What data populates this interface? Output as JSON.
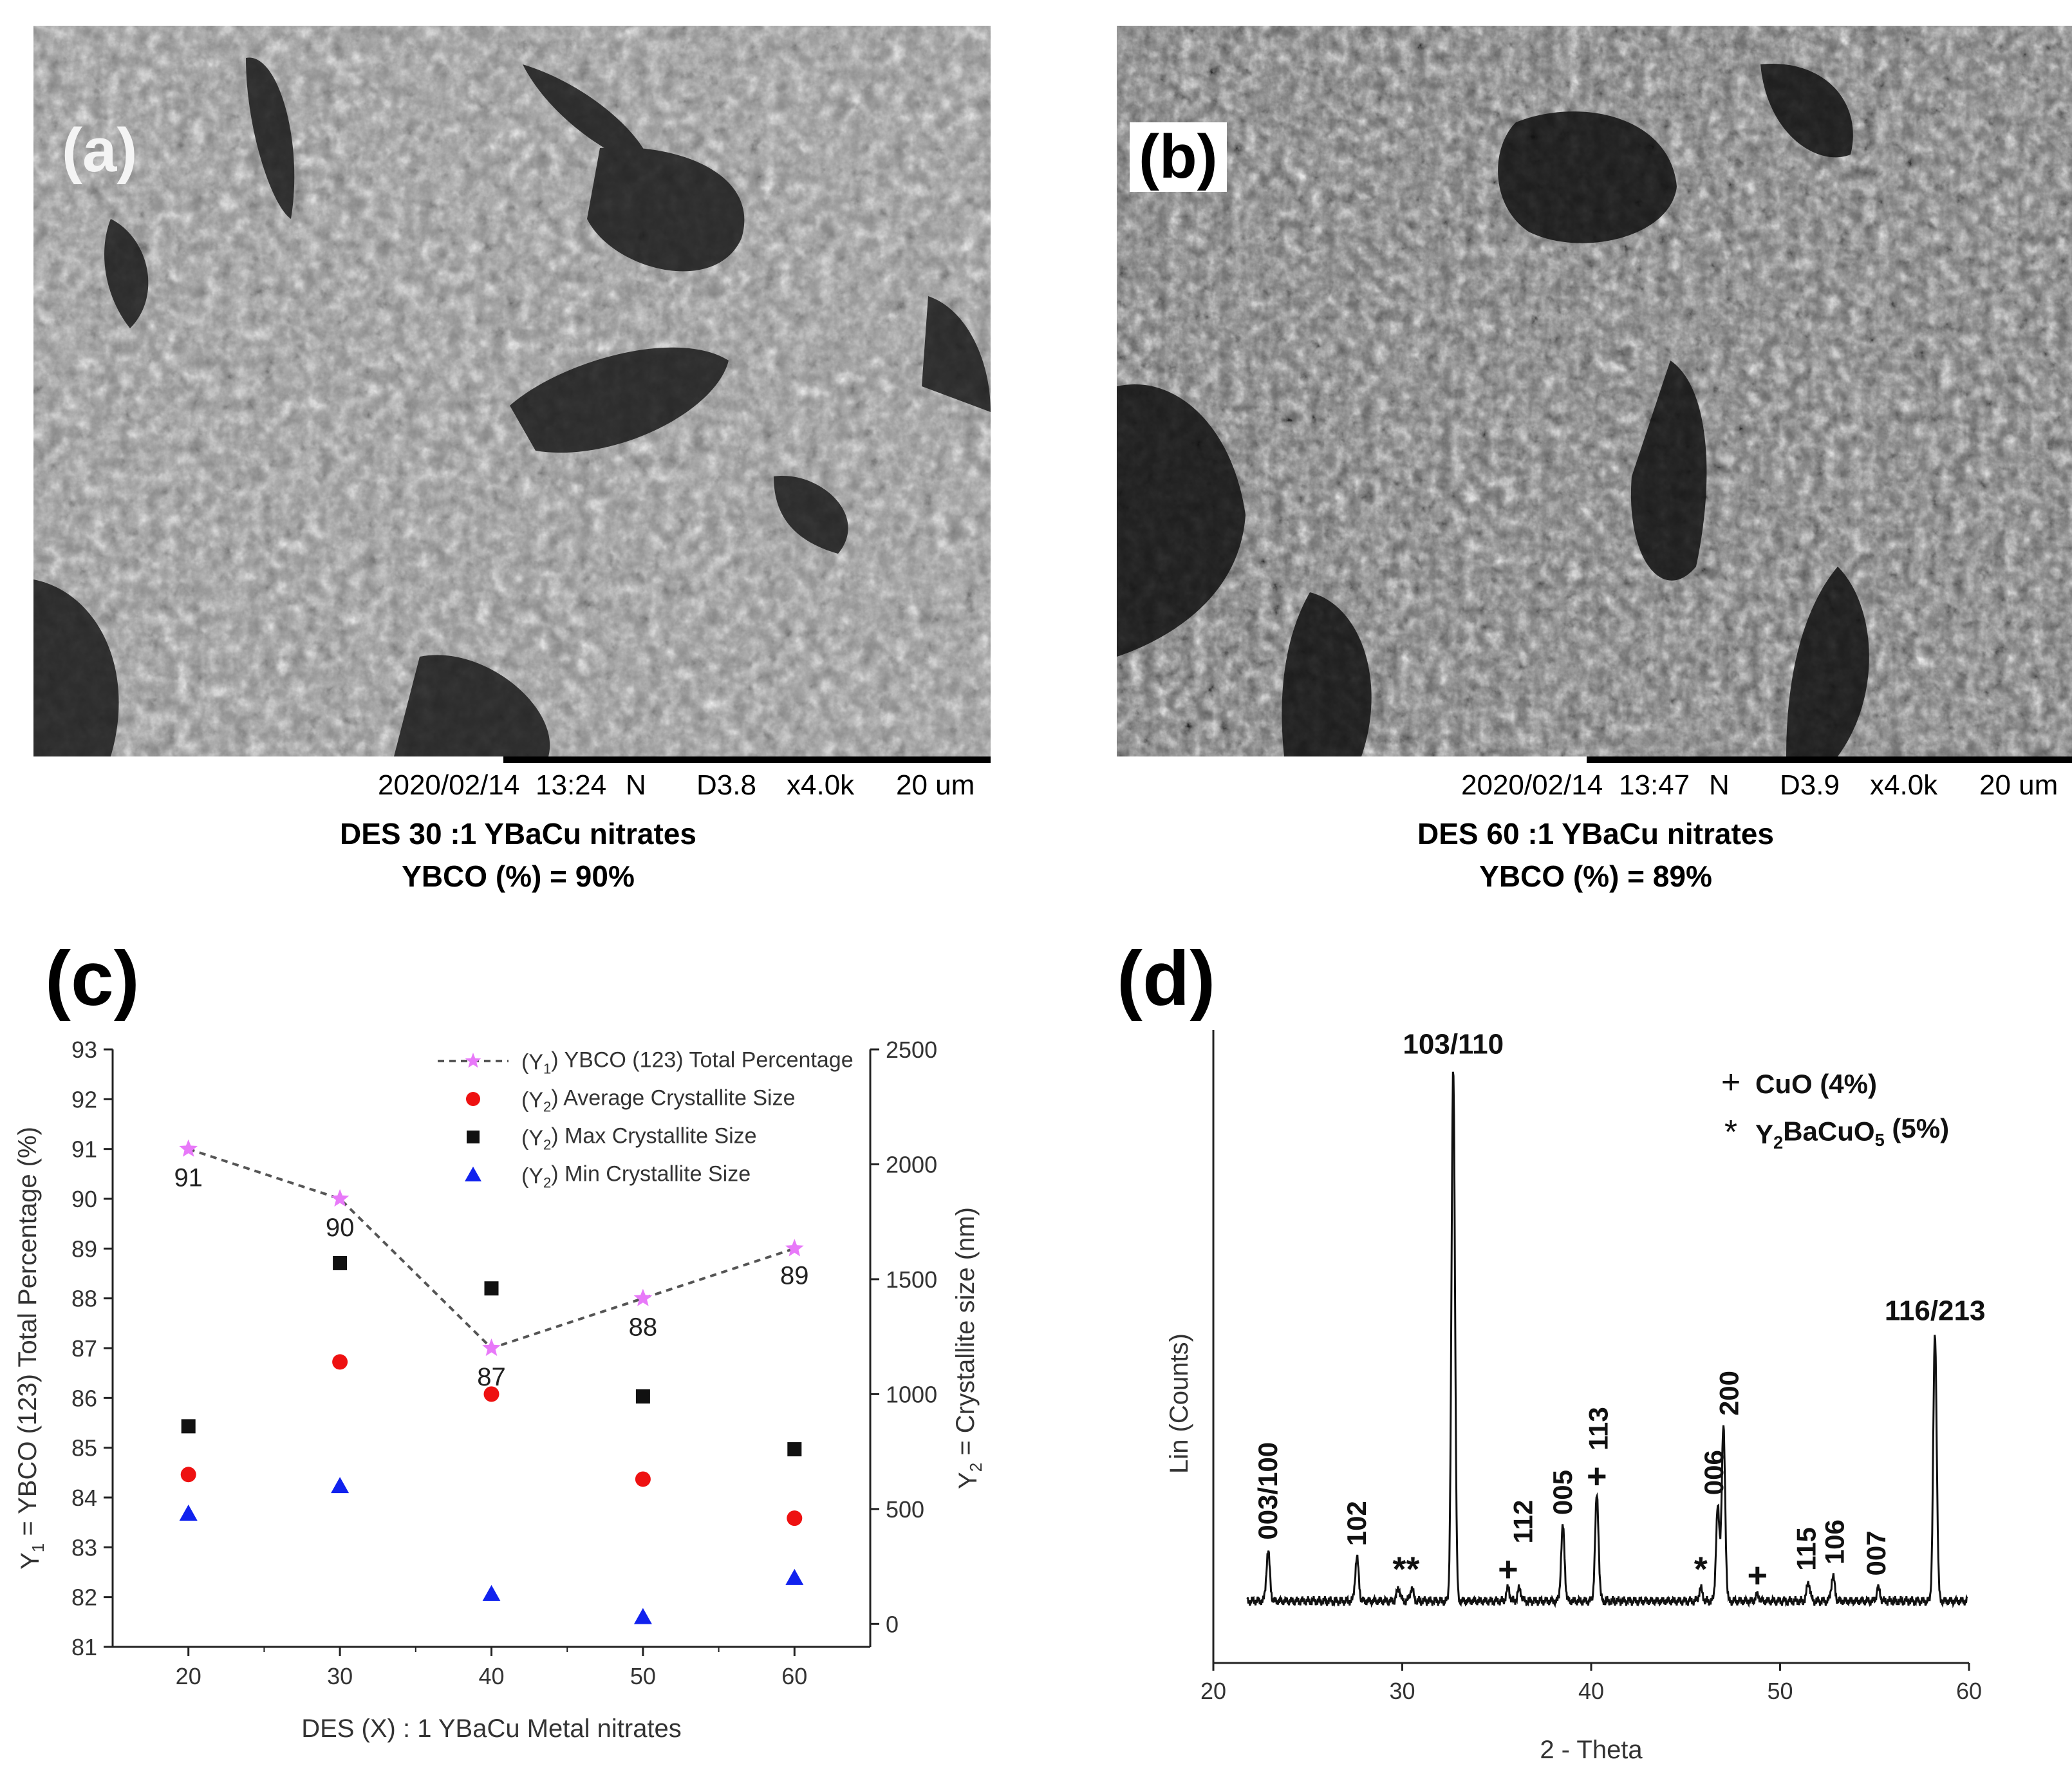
{
  "panel_a": {
    "label": "(a)",
    "infobar": {
      "date": "2020/02/14",
      "time": "13:24",
      "mode": "N",
      "wd": "D3.8",
      "mag": "x4.0k",
      "scale": "20 um"
    },
    "caption_line1": "DES 30 :1 YBaCu nitrates",
    "caption_line2": "YBCO (%) = 90%"
  },
  "panel_b": {
    "label": "(b)",
    "infobar": {
      "date": "2020/02/14",
      "time": "13:47",
      "mode": "N",
      "wd": "D3.9",
      "mag": "x4.0k",
      "scale": "20 um"
    },
    "caption_line1": "DES 60 :1 YBaCu nitrates",
    "caption_line2": "YBCO (%) = 89%"
  },
  "panel_c": {
    "label": "(c)"
  },
  "panel_d": {
    "label": "(d)"
  },
  "colors": {
    "pink": "#e879f9",
    "red": "#ee1111",
    "black": "#111111",
    "blue": "#1122ee",
    "dash": "#555555"
  },
  "chart_data": [
    {
      "type": "scatter",
      "xlabel": "DES (X) : 1 YBaCu Metal nitrates",
      "ylabel_left": "Y1 = YBCO (123) Total Percentage (%)",
      "ylabel_right": "Y2 = Crystallite size (nm)",
      "x": [
        20,
        30,
        40,
        50,
        60
      ],
      "xlim": [
        15,
        65
      ],
      "xticks": [
        20,
        30,
        40,
        50,
        60
      ],
      "ylim_left": [
        81,
        93
      ],
      "yticks_left": [
        81,
        82,
        83,
        84,
        85,
        86,
        87,
        88,
        89,
        90,
        91,
        92,
        93
      ],
      "ylim_right": [
        -100,
        2500
      ],
      "yticks_right": [
        0,
        500,
        1000,
        1500,
        2000,
        2500
      ],
      "legend_position": "top-right",
      "series": [
        {
          "name": "(Y1) YBCO (123) Total Percentage",
          "axis": "left",
          "style": "dashed-line-star",
          "values": [
            91,
            90,
            87,
            88,
            89
          ],
          "data_labels": [
            "91",
            "90",
            "87",
            "88",
            "89"
          ]
        },
        {
          "name": "(Y2) Average Crystallite Size",
          "axis": "right",
          "style": "circle",
          "values": [
            650,
            1140,
            1000,
            630,
            460
          ]
        },
        {
          "name": "(Y2) Max Crystallite Size",
          "axis": "right",
          "style": "square",
          "values": [
            860,
            1570,
            1460,
            990,
            760
          ]
        },
        {
          "name": "(Y2) Min Crystallite Size",
          "axis": "right",
          "style": "triangle",
          "values": [
            480,
            600,
            130,
            30,
            200
          ]
        }
      ]
    },
    {
      "type": "line",
      "xlabel": "2 - Theta",
      "ylabel": "Lin (Counts)",
      "xlim": [
        20,
        60
      ],
      "xticks": [
        20,
        30,
        40,
        50,
        60
      ],
      "ylim": [
        0,
        100
      ],
      "baseline": 10,
      "peaks": [
        {
          "x": 22.9,
          "y": 18
        },
        {
          "x": 27.6,
          "y": 17
        },
        {
          "x": 29.8,
          "y": 12
        },
        {
          "x": 30.5,
          "y": 12
        },
        {
          "x": 32.7,
          "y": 96
        },
        {
          "x": 35.6,
          "y": 12
        },
        {
          "x": 36.2,
          "y": 12
        },
        {
          "x": 38.5,
          "y": 22
        },
        {
          "x": 40.3,
          "y": 27
        },
        {
          "x": 45.8,
          "y": 12
        },
        {
          "x": 46.7,
          "y": 25
        },
        {
          "x": 47.0,
          "y": 38
        },
        {
          "x": 48.8,
          "y": 11
        },
        {
          "x": 51.5,
          "y": 13
        },
        {
          "x": 52.8,
          "y": 14
        },
        {
          "x": 55.2,
          "y": 12
        },
        {
          "x": 58.2,
          "y": 53
        }
      ],
      "annotations": [
        {
          "text": "003/100",
          "x": 22.9,
          "rotate": true
        },
        {
          "text": "102",
          "x": 27.6,
          "rotate": true
        },
        {
          "text": "**",
          "x": 30.2,
          "rotate": false
        },
        {
          "text": "103/110",
          "x": 32.7,
          "rotate": false
        },
        {
          "text": "+",
          "x": 35.6,
          "rotate": false
        },
        {
          "text": "112",
          "x": 36.4,
          "rotate": true
        },
        {
          "text": "005",
          "x": 38.5,
          "rotate": true
        },
        {
          "text": "+",
          "x": 40.3,
          "rotate": false
        },
        {
          "text": "113",
          "x": 40.4,
          "rotate": true
        },
        {
          "text": "*",
          "x": 45.8,
          "rotate": false
        },
        {
          "text": "006",
          "x": 46.5,
          "rotate": true
        },
        {
          "text": "200",
          "x": 47.3,
          "rotate": true
        },
        {
          "text": "+",
          "x": 48.8,
          "rotate": false
        },
        {
          "text": "115",
          "x": 51.4,
          "rotate": true
        },
        {
          "text": "106",
          "x": 52.9,
          "rotate": true
        },
        {
          "text": "007",
          "x": 55.1,
          "rotate": true
        },
        {
          "text": "116/213",
          "x": 58.2,
          "rotate": false
        }
      ],
      "legend": [
        {
          "symbol": "+",
          "text": "CuO (4%)"
        },
        {
          "symbol": "*",
          "text": "Y2BaCuO5 (5%)"
        }
      ]
    }
  ]
}
